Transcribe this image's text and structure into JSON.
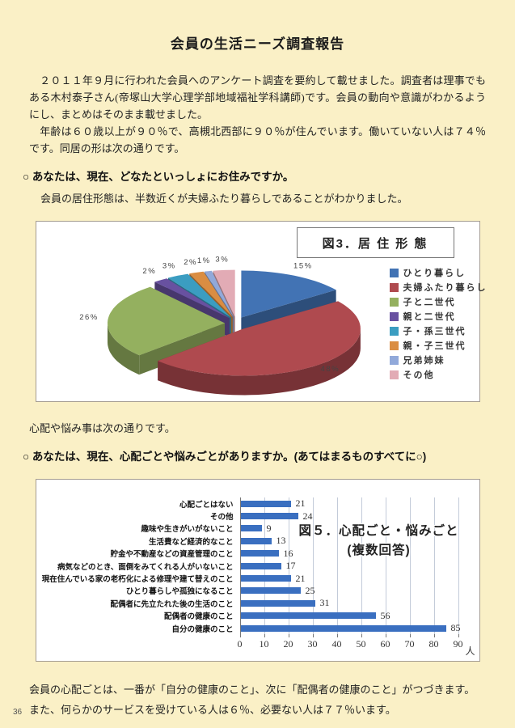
{
  "page": {
    "title": "会員の生活ニーズ調査報告",
    "page_number": "36",
    "background_color": "#faf0c6"
  },
  "paragraphs": {
    "intro": "　２０１１年９月に行われた会員へのアンケート調査を要約して載せました。調査者は理事でもある木村泰子さん(帝塚山大学心理学部地域福祉学科講師)です。会員の動向や意識がわかるようにし、まとめはそのまま載せました。",
    "demographics": "　年齢は６０歳以上が９０％で、高槻北西部に９０％が住んでいます。働いていない人は７４％です。同居の形は次の通りです。",
    "question1": "○ あなたは、現在、どなたといっしょにお住みですか。",
    "living_note": "会員の居住形態は、半数近くが夫婦ふたり暮らしであることがわかりました。",
    "worries_intro": "心配や悩み事は次の通りです。",
    "question2": "○ あなたは、現在、心配ごとや悩みごとがありますか。(あてはまるものすべてに○)",
    "conclusion1": "会員の心配ごとは、一番が「自分の健康のこと」、次に「配偶者の健康のこと」がつづきます。",
    "conclusion2": "また、何らかのサービスを受けている人は６％、必要ない人は７７％います。"
  },
  "chart_data": [
    {
      "type": "pie",
      "style": "3d-exploded",
      "figure_title": "図3．居 住 形 態",
      "labels": [
        "ひとり暮らし",
        "夫婦ふたり暮らし",
        "子と二世代",
        "親と二世代",
        "子・孫三世代",
        "親・子三世代",
        "兄弟姉妹",
        "その他"
      ],
      "values": [
        15,
        48,
        26,
        2,
        3,
        2,
        1,
        3
      ],
      "value_labels": [
        "15%",
        "48%",
        "26%",
        "2%",
        "3%",
        "2%",
        "1%",
        "3%"
      ],
      "colors": [
        "#4273b4",
        "#af4a4f",
        "#94b05f",
        "#6851a0",
        "#3b9dc1",
        "#da8d42",
        "#91a9da",
        "#e2abb5"
      ],
      "legend_position": "right"
    },
    {
      "type": "bar",
      "orientation": "horizontal",
      "figure_title": "図５．心配ごと・悩みごと",
      "figure_subtitle": "(複数回答)",
      "categories": [
        "心配ごとはない",
        "その他",
        "趣味や生きがいがないこと",
        "生活費など経済的なこと",
        "貯金や不動産などの資産管理のこと",
        "病気などのとき、面倒をみてくれる人がいないこと",
        "現在住んでいる家の老朽化による修理や建て替えのこと",
        "ひとり暮らしや孤独になること",
        "配偶者に先立たれた後の生活のこと",
        "配偶者の健康のこと",
        "自分の健康のこと"
      ],
      "values": [
        21,
        24,
        9,
        13,
        16,
        17,
        21,
        25,
        31,
        56,
        85
      ],
      "xlim": [
        0,
        90
      ],
      "xticks": [
        0,
        10,
        20,
        30,
        40,
        50,
        60,
        70,
        80,
        90
      ],
      "xlabel": "人",
      "bar_color": "#3a6fc0",
      "grid": true
    }
  ]
}
